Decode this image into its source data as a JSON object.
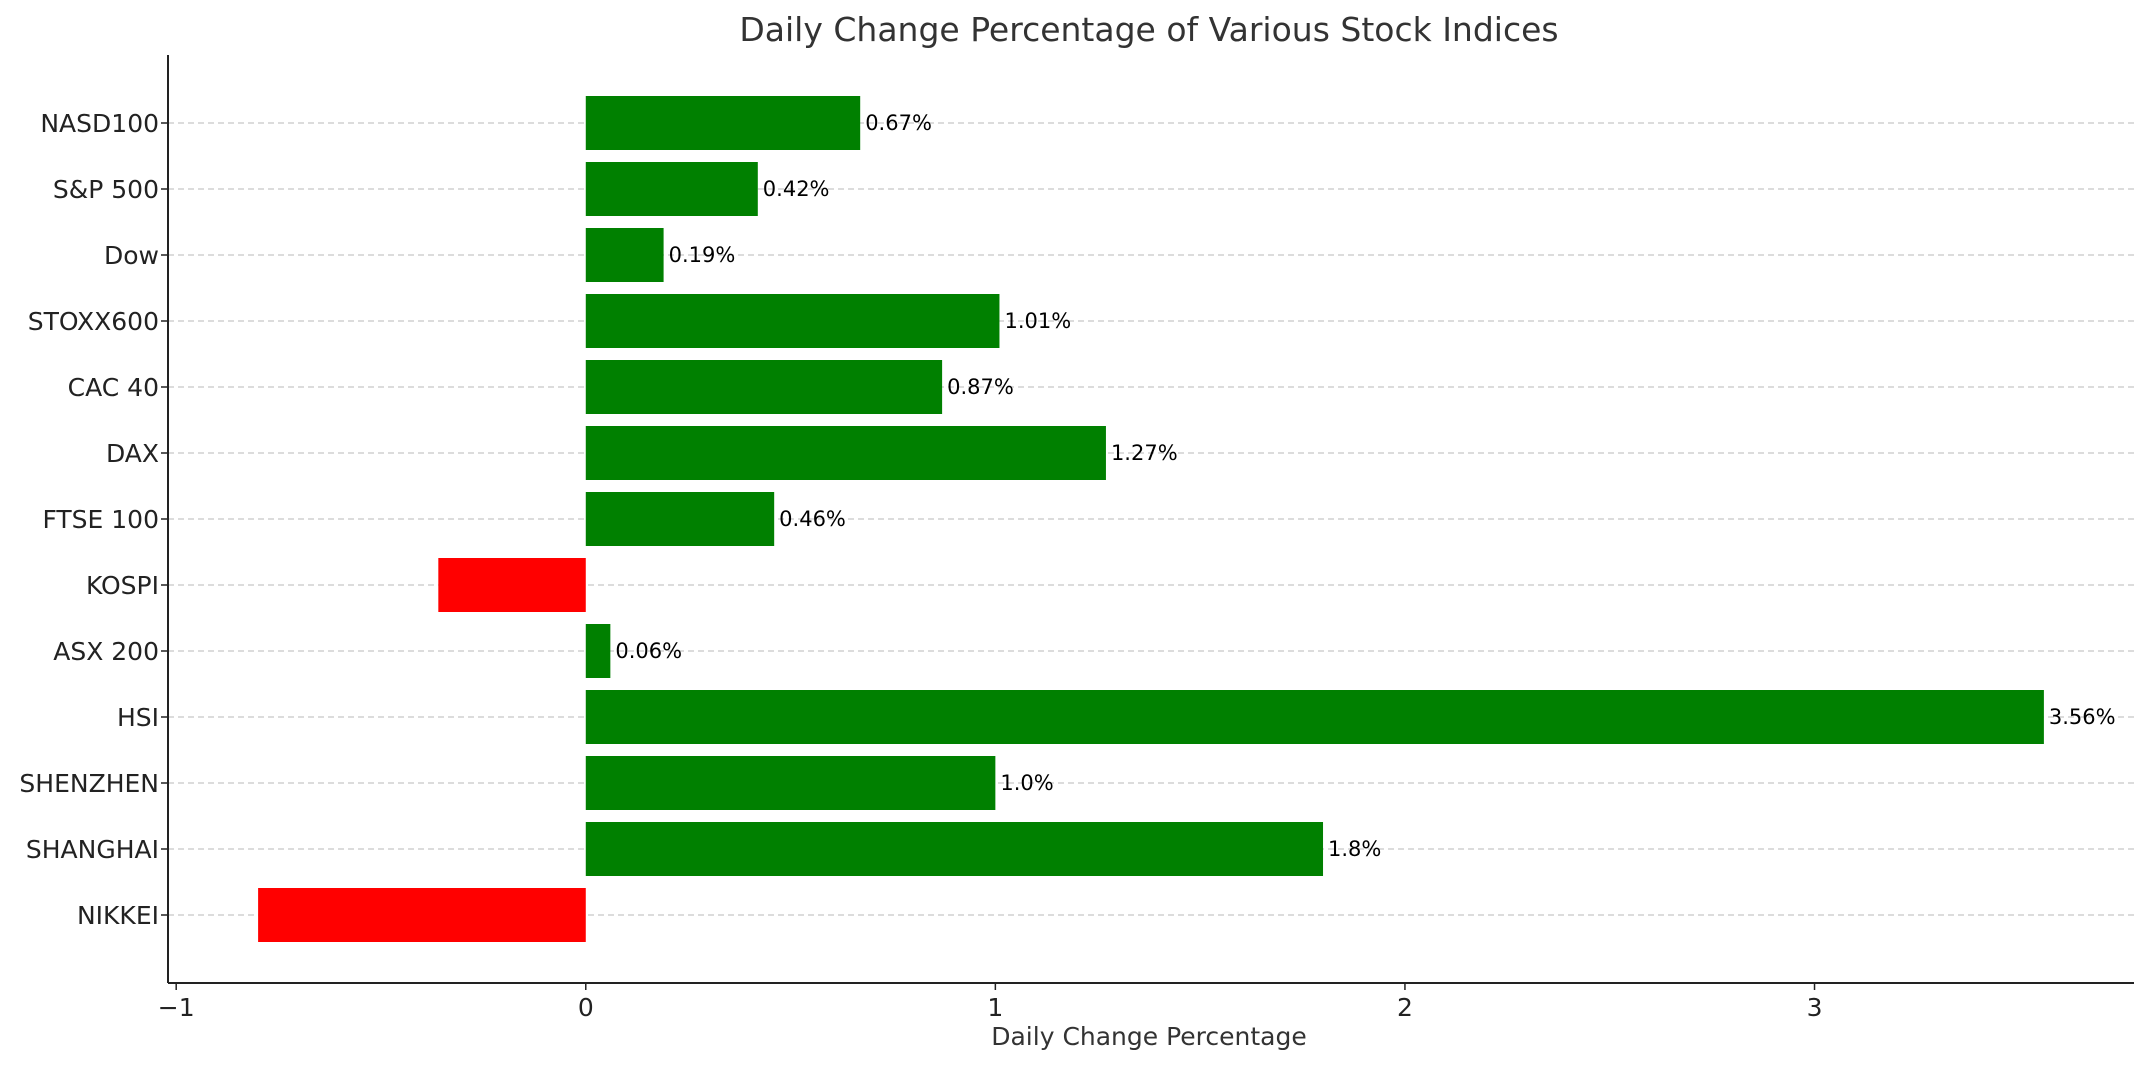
{
  "chart_data": {
    "type": "bar",
    "orientation": "horizontal",
    "title": "Daily Change Percentage of Various Stock Indices",
    "xlabel": "Daily Change Percentage",
    "ylabel": "",
    "categories": [
      "NASD100",
      "S&P 500",
      "Dow",
      "STOXX600",
      "CAC 40",
      "DAX",
      "FTSE 100",
      "KOSPI",
      "ASX 200",
      "HSI",
      "SHENZHEN",
      "SHANGHAI",
      "NIKKEI"
    ],
    "values": [
      0.67,
      0.42,
      0.19,
      1.01,
      0.87,
      1.27,
      0.46,
      -0.36,
      0.06,
      3.56,
      1.0,
      1.8,
      -0.8
    ],
    "data_labels": [
      "0.67%",
      "0.42%",
      "0.19%",
      "1.01%",
      "0.87%",
      "1.27%",
      "0.46%",
      "",
      "0.06%",
      "3.56%",
      "1.0%",
      "1.8%",
      ""
    ],
    "xlim": [
      -1.02,
      3.78
    ],
    "xticks": [
      -1,
      0,
      1,
      2,
      3
    ],
    "xtick_labels": [
      "−1",
      "0",
      "1",
      "2",
      "3"
    ],
    "grid": "horizontal dashed",
    "colors": {
      "positive": "#008000",
      "negative": "#ff0000"
    }
  }
}
